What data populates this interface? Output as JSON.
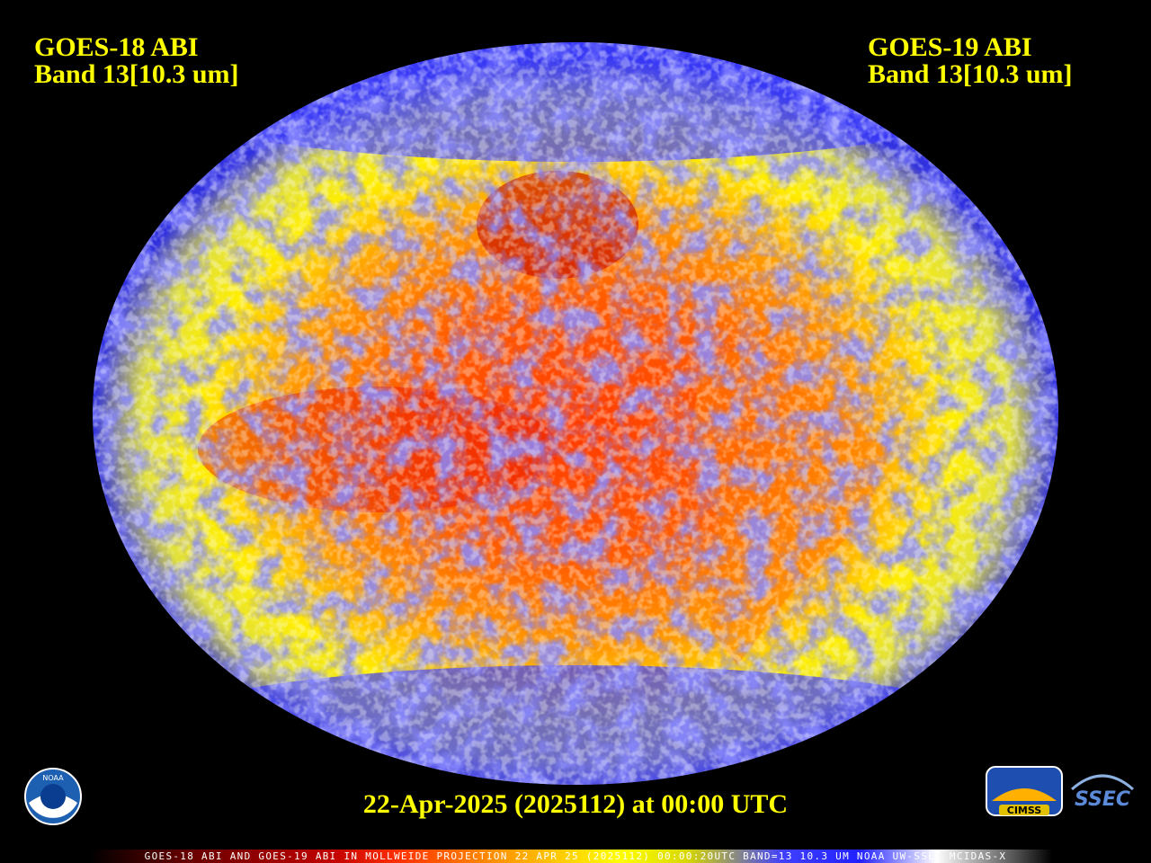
{
  "header_left": {
    "line1": "GOES-18 ABI",
    "line2": "Band 13[10.3 um]"
  },
  "header_right": {
    "line1": "GOES-19 ABI",
    "line2": "Band 13[10.3 um]"
  },
  "timestamp": "22-Apr-2025 (2025112) at 00:00 UTC",
  "colorbar_caption": "GOES-18 ABI AND GOES-19 ABI IN MOLLWEIDE PROJECTION 22 APR 25 (2025112) 00:00:20UTC BAND=13 10.3 UM NOAA UW-SSEC MCIDAS-X",
  "logos": {
    "noaa": "NOAA",
    "cimss": "CIMSS",
    "ssec": "SSEC"
  }
}
